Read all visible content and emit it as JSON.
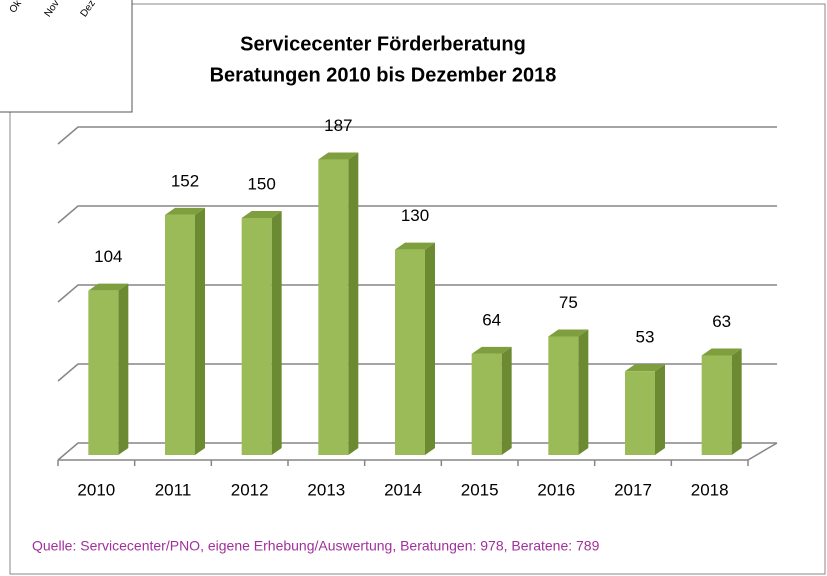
{
  "chart_data": {
    "type": "bar3d",
    "title": "Servicecenter Förderberatung",
    "subtitle": "Beratungen 2010 bis Dezember 2018",
    "categories": [
      "2010",
      "2011",
      "2012",
      "2013",
      "2014",
      "2015",
      "2016",
      "2017",
      "2018"
    ],
    "values": [
      104,
      152,
      150,
      187,
      130,
      64,
      75,
      53,
      63
    ],
    "color": "#9bbb59",
    "ylim": [
      0,
      200
    ],
    "yticks": [
      0,
      50,
      100,
      150,
      200
    ],
    "grid": true,
    "source": "Quelle: Servicecenter/PNO, eigene Erhebung/Auswertung, Beratungen: 978, Beratene: 789",
    "overlay_labels": [
      "Ok",
      "Nov",
      "Dez"
    ]
  }
}
